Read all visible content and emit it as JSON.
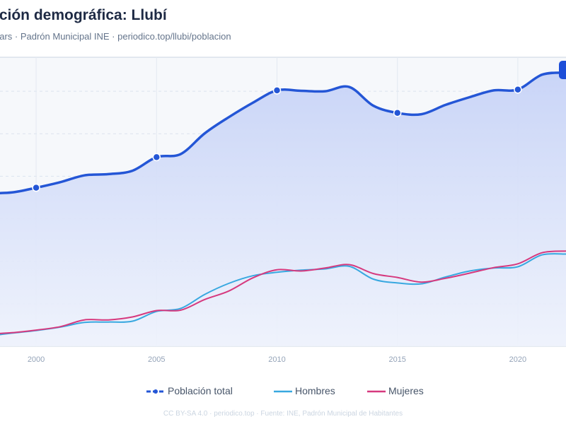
{
  "header": {
    "title": "ución demográfica: Llubí",
    "subtitle": "ears · Padrón Municipal INE · periodico.top/llubi/poblacion"
  },
  "footer": {
    "text": "CC BY-SA 4.0 · periodico.top · Fuente: INE, Padrón Municipal de Habitantes"
  },
  "legend": {
    "items": [
      {
        "label": "Población total",
        "color": "#2456d6",
        "style": "dashed-dot"
      },
      {
        "label": "Hombres",
        "color": "#38a8e0",
        "style": "solid"
      },
      {
        "label": "Mujeres",
        "color": "#d6397e",
        "style": "solid"
      }
    ]
  },
  "chart_data": {
    "type": "line",
    "x": [
      1998,
      1999,
      2000,
      2001,
      2002,
      2003,
      2004,
      2005,
      2006,
      2007,
      2008,
      2009,
      2010,
      2011,
      2012,
      2013,
      2014,
      2015,
      2016,
      2017,
      2018,
      2019,
      2020,
      2021,
      2022
    ],
    "xticks": [
      "2000",
      "2005",
      "2010",
      "2015",
      "2020"
    ],
    "xtick_values": [
      2000,
      2005,
      2010,
      2015,
      2020
    ],
    "series": [
      {
        "name": "Población total",
        "color": "#2456d6",
        "values": [
          3.6,
          3.62,
          3.73,
          3.86,
          4.02,
          4.05,
          4.13,
          4.45,
          4.52,
          5.01,
          5.39,
          5.73,
          6.02,
          6.01,
          6.0,
          6.1,
          5.66,
          5.49,
          5.46,
          5.68,
          5.86,
          6.02,
          6.04,
          6.39,
          6.44
        ],
        "markers": [
          2000,
          2005,
          2010,
          2015,
          2020
        ]
      },
      {
        "name": "Hombres",
        "color": "#38a8e0",
        "values": [
          0.24,
          0.31,
          0.37,
          0.45,
          0.56,
          0.57,
          0.59,
          0.82,
          0.89,
          1.22,
          1.48,
          1.66,
          1.74,
          1.79,
          1.82,
          1.88,
          1.58,
          1.49,
          1.47,
          1.63,
          1.77,
          1.84,
          1.87,
          2.15,
          2.17
        ]
      },
      {
        "name": "Mujeres",
        "color": "#d6397e",
        "values": [
          0.29,
          0.32,
          0.38,
          0.46,
          0.62,
          0.62,
          0.69,
          0.84,
          0.85,
          1.1,
          1.3,
          1.61,
          1.8,
          1.77,
          1.84,
          1.92,
          1.71,
          1.62,
          1.51,
          1.6,
          1.72,
          1.85,
          1.94,
          2.2,
          2.24
        ]
      }
    ],
    "xlim": [
      1998.5,
      2022
    ],
    "ylim": [
      0,
      6.8
    ],
    "grid": true,
    "legend_position": "bottom-center",
    "area_fill_series": "Población total"
  }
}
